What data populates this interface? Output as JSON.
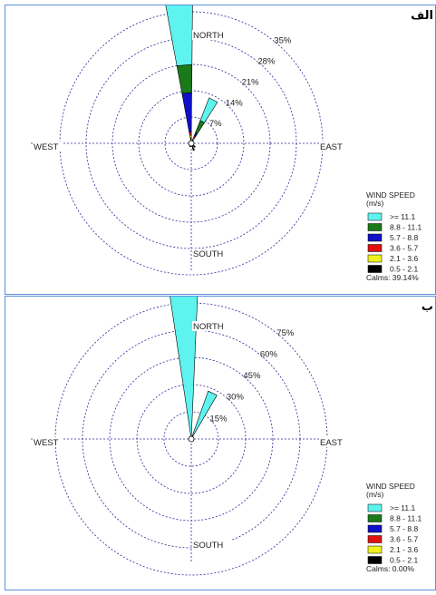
{
  "panels": [
    {
      "label": "الف",
      "cardinals": {
        "north": "NORTH",
        "south": "SOUTH",
        "east": "EAST",
        "west": "WEST"
      },
      "chart_data": {
        "type": "wind-rose",
        "ring_labels": [
          "7%",
          "14%",
          "21%",
          "28%",
          "35%"
        ],
        "ring_values": [
          7,
          14,
          21,
          28,
          35
        ],
        "petals": [
          {
            "direction_deg": 355,
            "segments": [
              {
                "bin": "0.5 - 2.1",
                "cum": 1.5
              },
              {
                "bin": "2.1 - 3.6",
                "cum": 2.2
              },
              {
                "bin": "3.6 - 5.7",
                "cum": 3.0
              },
              {
                "bin": "5.7 - 8.8",
                "cum": 13.5
              },
              {
                "bin": "8.8 - 11.1",
                "cum": 21.0
              },
              {
                "bin": ">= 11.1",
                "cum": 38.0
              }
            ]
          },
          {
            "direction_deg": 27,
            "segments": [
              {
                "bin": "0.5 - 2.1",
                "cum": 1.0
              },
              {
                "bin": "2.1 - 3.6",
                "cum": 1.6
              },
              {
                "bin": "3.6 - 5.7",
                "cum": 2.2
              },
              {
                "bin": "5.7 - 8.8",
                "cum": 3.0
              },
              {
                "bin": "8.8 - 11.1",
                "cum": 6.5
              },
              {
                "bin": ">= 11.1",
                "cum": 13.0
              }
            ]
          },
          {
            "direction_deg": 160,
            "segments": [
              {
                "bin": "0.5 - 2.1",
                "cum": 2.0
              }
            ]
          },
          {
            "direction_deg": 135,
            "segments": [
              {
                "bin": "0.5 - 2.1",
                "cum": 1.4
              }
            ]
          },
          {
            "direction_deg": 200,
            "segments": [
              {
                "bin": "0.5 - 2.1",
                "cum": 1.0
              }
            ]
          }
        ]
      },
      "legend": {
        "title": "WIND SPEED",
        "unit": "(m/s)",
        "items": [
          {
            "label": ">= 11.1",
            "color": "#5ff3ef"
          },
          {
            "label": "8.8 - 11.1",
            "color": "#1a7a1a"
          },
          {
            "label": "5.7 - 8.8",
            "color": "#1010c8"
          },
          {
            "label": "3.6 - 5.7",
            "color": "#e01010"
          },
          {
            "label": "2.1 - 3.6",
            "color": "#f0f020"
          },
          {
            "label": "0.5 - 2.1",
            "color": "#000000"
          }
        ],
        "calms": "Calms: 39.14%"
      }
    },
    {
      "label": "ب",
      "cardinals": {
        "north": "NORTH",
        "south": "SOUTH",
        "east": "EAST",
        "west": "WEST"
      },
      "chart_data": {
        "type": "wind-rose",
        "ring_labels": [
          "15%",
          "30%",
          "45%",
          "60%",
          "75%"
        ],
        "ring_values": [
          15,
          30,
          45,
          60,
          75
        ],
        "petals": [
          {
            "direction_deg": 357,
            "segments": [
              {
                "bin": ">= 11.1",
                "cum": 80.0
              }
            ]
          },
          {
            "direction_deg": 25,
            "segments": [
              {
                "bin": ">= 11.1",
                "cum": 28.0
              }
            ]
          }
        ]
      },
      "legend": {
        "title": "WIND SPEED",
        "unit": "(m/s)",
        "items": [
          {
            "label": ">= 11.1",
            "color": "#5ff3ef"
          },
          {
            "label": "8.8 - 11.1",
            "color": "#1a7a1a"
          },
          {
            "label": "5.7 - 8.8",
            "color": "#1010c8"
          },
          {
            "label": "3.6 - 5.7",
            "color": "#e01010"
          },
          {
            "label": "2.1 - 3.6",
            "color": "#f0f020"
          },
          {
            "label": "0.5 - 2.1",
            "color": "#000000"
          }
        ],
        "calms": "Calms: 0.00%"
      }
    }
  ]
}
